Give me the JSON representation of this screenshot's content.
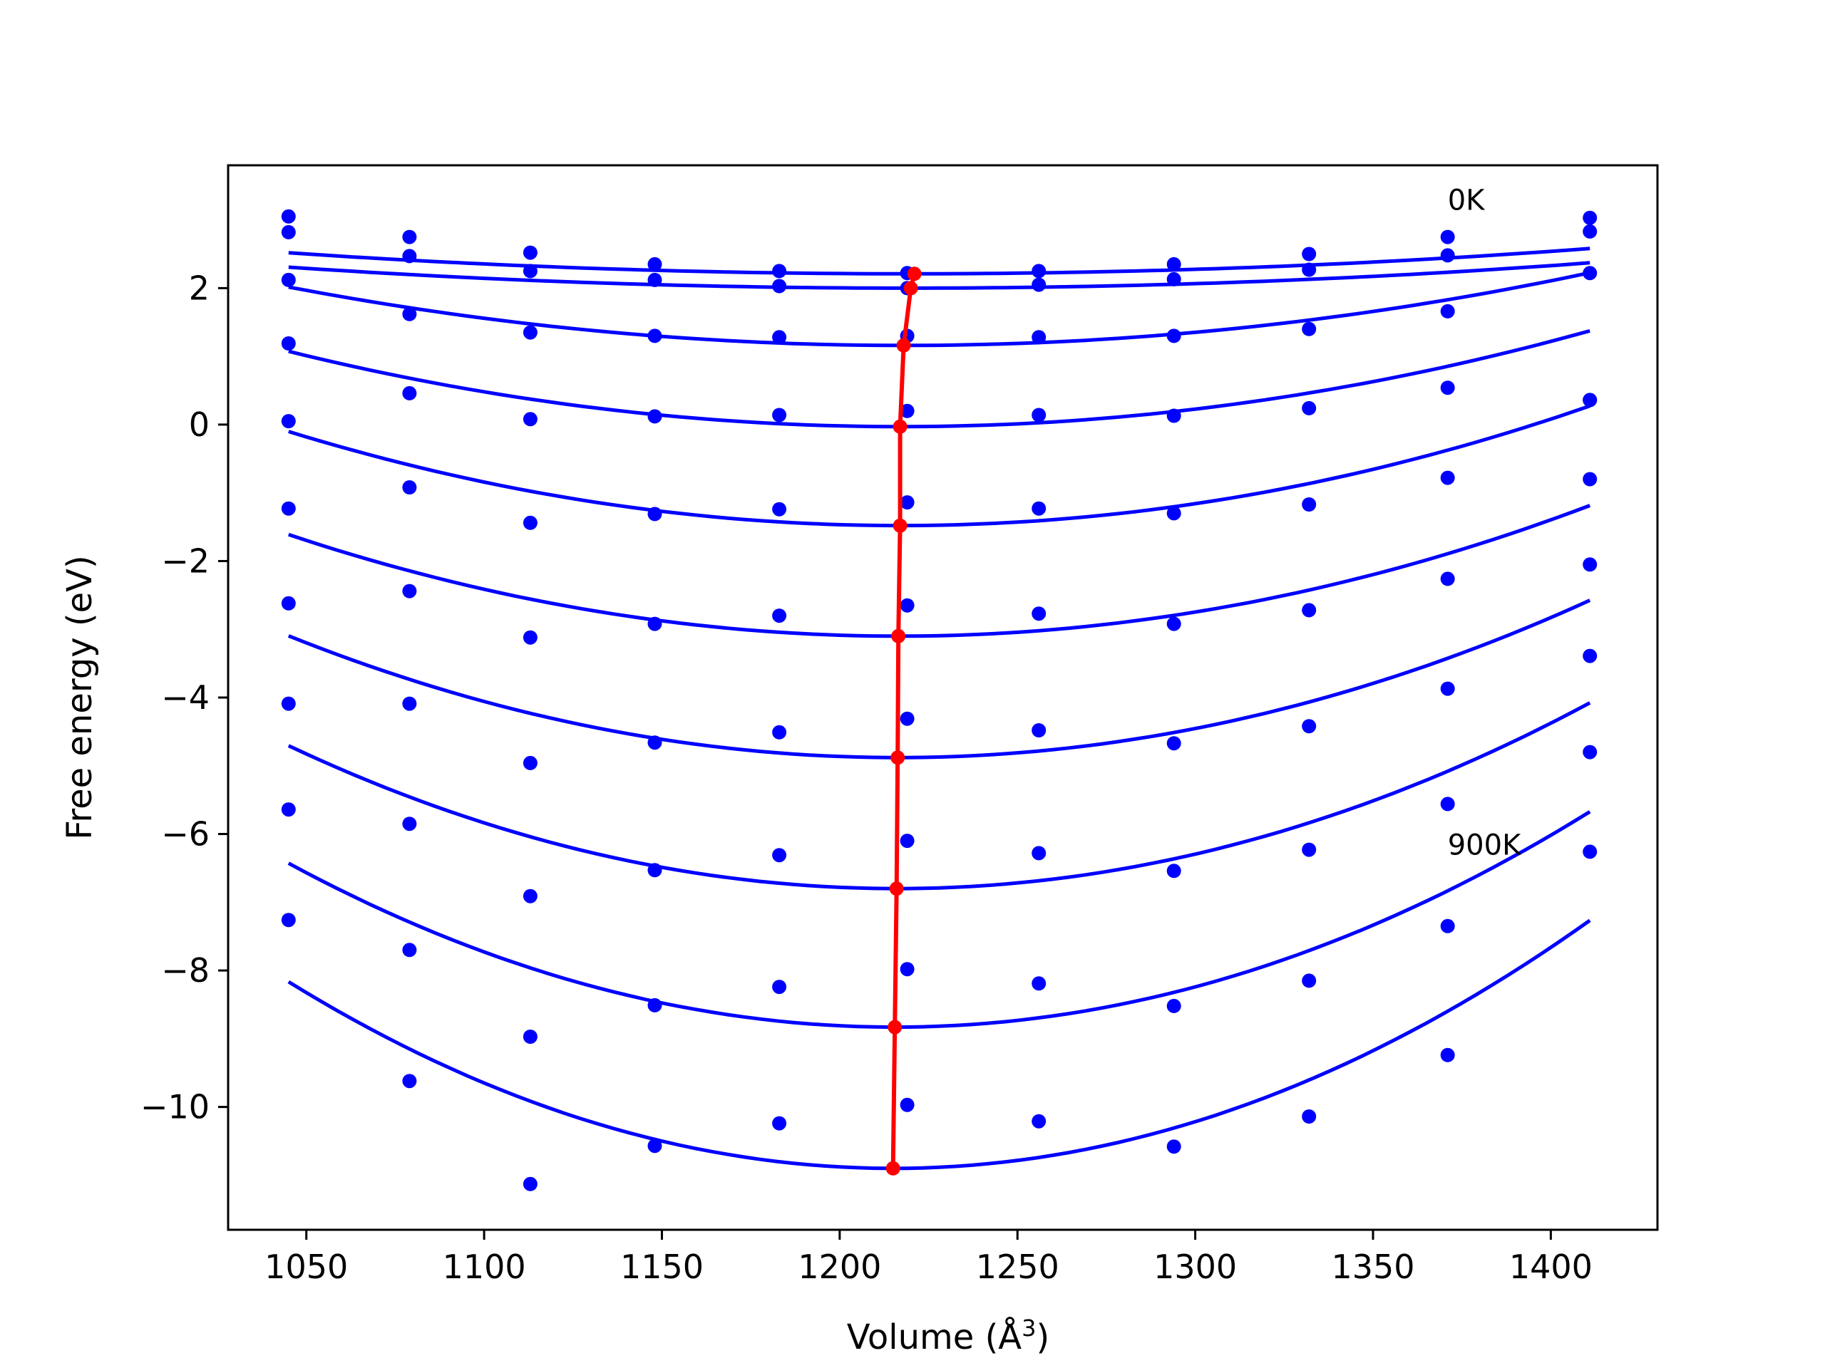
{
  "chart_data": {
    "type": "scatter",
    "title": "",
    "xlabel": "Volume (Å",
    "xlabel_superscript": "3",
    "xlabel_close": ")",
    "ylabel": "Free energy (eV)",
    "xlim": [
      1028,
      1430
    ],
    "ylim": [
      -11.8,
      3.8
    ],
    "x_ticks": [
      1050,
      1100,
      1150,
      1200,
      1250,
      1300,
      1350,
      1400
    ],
    "x_tick_labels": [
      "1050",
      "1100",
      "1150",
      "1200",
      "1250",
      "1300",
      "1350",
      "1400"
    ],
    "y_ticks": [
      2,
      0,
      -2,
      -4,
      -6,
      -8,
      -10
    ],
    "y_tick_labels": [
      "2",
      "0",
      "−2",
      "−4",
      "−6",
      "−8",
      "−10"
    ],
    "grid": false,
    "colors": {
      "data": "#0000ff",
      "fit": "#0000ff",
      "minimum": "#ff0000"
    },
    "annotations": [
      {
        "text": "0K",
        "x": 1371,
        "y": 3.15
      },
      {
        "text": "900K",
        "x": 1371,
        "y": -6.3
      }
    ],
    "volumes": [
      1045,
      1079,
      1113,
      1148,
      1183,
      1219,
      1256,
      1294,
      1332,
      1371,
      1411
    ],
    "series": [
      {
        "points": [
          3.05,
          2.75,
          2.52,
          2.35,
          2.25,
          2.22,
          2.25,
          2.35,
          2.5,
          2.75,
          3.03
        ],
        "fit": {
          "a": 1.01e-05,
          "v0": 1219.5,
          "fmin": 2.21
        }
      },
      {
        "points": [
          2.82,
          2.47,
          2.25,
          2.12,
          2.03,
          2.0,
          2.05,
          2.13,
          2.27,
          2.48,
          2.83
        ],
        "fit": {
          "a": 1.01e-05,
          "v0": 1219.3,
          "fmin": 2.0
        }
      },
      {
        "points": [
          2.12,
          1.62,
          1.35,
          1.3,
          1.28,
          1.3,
          1.28,
          1.3,
          1.4,
          1.66,
          2.22
        ],
        "fit": {
          "a": 2.86e-05,
          "v0": 1218,
          "fmin": 1.16
        }
      },
      {
        "points": [
          1.19,
          0.46,
          0.08,
          0.12,
          0.14,
          0.2,
          0.14,
          0.13,
          0.24,
          0.54,
          0.36
        ],
        "fit": {
          "a": 3.73e-05,
          "v0": 1217,
          "fmin": -0.03
        }
      },
      {
        "points": [
          0.05,
          -0.92,
          -1.44,
          -1.31,
          -1.24,
          -1.14,
          -1.23,
          -1.3,
          -1.17,
          -0.78,
          0.36
        ],
        "fit": {
          "a": 4.66e-05,
          "v0": 1217,
          "fmin": -1.48
        }
      },
      {
        "points": [
          -1.23,
          -2.44,
          -3.12,
          -2.92,
          -2.8,
          -2.65,
          -2.77,
          -2.92,
          -2.72,
          -2.26,
          -0.8
        ],
        "fit": {
          "a": 5.06e-05,
          "v0": 1216.5,
          "fmin": -3.1
        }
      },
      {
        "points": [
          -2.62,
          -4.09,
          -4.96,
          -4.66,
          -4.51,
          -4.31,
          -4.48,
          -4.67,
          -4.42,
          -3.87,
          -2.05
        ],
        "fit": {
          "a": 6.08e-05,
          "v0": 1216.3,
          "fmin": -4.88
        }
      },
      {
        "points": [
          -4.09,
          -5.85,
          -6.91,
          -6.53,
          -6.31,
          -6.1,
          -6.28,
          -6.54,
          -6.23,
          -5.56,
          -3.39
        ],
        "fit": {
          "a": 7.16e-05,
          "v0": 1216,
          "fmin": -6.8
        }
      },
      {
        "points": [
          -5.64,
          -7.7,
          -8.97,
          -8.51,
          -8.24,
          -7.98,
          -8.19,
          -8.52,
          -8.15,
          -7.35,
          -4.8
        ],
        "fit": {
          "a": 8.26e-05,
          "v0": 1215.5,
          "fmin": -8.83
        }
      },
      {
        "points": [
          -7.26,
          -9.62,
          -11.13,
          -10.57,
          -10.24,
          -9.97,
          -10.21,
          -10.58,
          -10.14,
          -9.24,
          -6.26
        ],
        "fit": {
          "a": 9.46e-05,
          "v0": 1215,
          "fmin": -10.9
        }
      }
    ],
    "minimum_line": {
      "x": [
        1221,
        1220,
        1218,
        1217,
        1217,
        1216.5,
        1216.3,
        1216,
        1215.5,
        1215
      ],
      "y": [
        2.21,
        2.0,
        1.16,
        -0.03,
        -1.48,
        -3.1,
        -4.88,
        -6.8,
        -8.83,
        -10.9
      ]
    }
  }
}
